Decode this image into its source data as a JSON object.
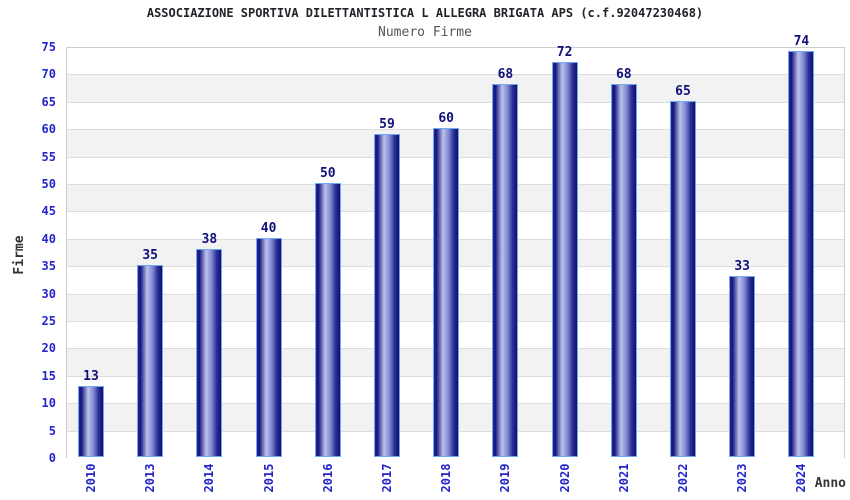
{
  "chart_data": {
    "type": "bar",
    "title": "ASSOCIAZIONE SPORTIVA DILETTANTISTICA L ALLEGRA BRIGATA APS (c.f.92047230468)",
    "subtitle": "Numero Firme",
    "xlabel": "Anno",
    "ylabel": "Firme",
    "categories": [
      "2010",
      "2013",
      "2014",
      "2015",
      "2016",
      "2017",
      "2018",
      "2019",
      "2020",
      "2021",
      "2022",
      "2023",
      "2024"
    ],
    "values": [
      13,
      35,
      38,
      40,
      50,
      59,
      60,
      68,
      72,
      68,
      65,
      33,
      74
    ],
    "ylim": [
      0,
      75
    ],
    "ytick_step": 5,
    "grid": true,
    "bands_alternating": true,
    "legend_position": "none",
    "value_labels_shown": true,
    "colors": {
      "title_color": "#222228",
      "subtitle_color": "#555555",
      "tick_label": "#2424cc",
      "value_label": "#10107a",
      "axis_label": "#333333",
      "bar_dark": "#15157c",
      "bar_light": "#bcc2ec",
      "bar_border": "#6fa8f0",
      "band": "#f2f2f2",
      "gridline": "#dddddd",
      "plot_border": "#cccccc"
    }
  }
}
